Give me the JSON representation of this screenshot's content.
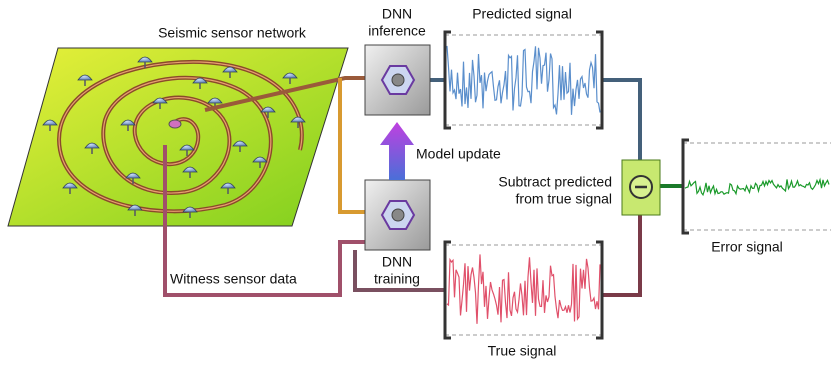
{
  "network": {
    "label": "Seismic sensor network"
  },
  "inference": {
    "lines": [
      "DNN",
      "inference"
    ]
  },
  "training": {
    "lines": [
      "DNN",
      "training"
    ]
  },
  "predicted": {
    "label": "Predicted signal"
  },
  "true_signal": {
    "label": "True signal"
  },
  "error": {
    "label": "Error signal"
  },
  "model_update": {
    "label": "Model update"
  },
  "subtract": {
    "lines": [
      "Subtract predicted",
      "from true signal"
    ]
  },
  "witness": {
    "label": "Witness sensor data"
  }
}
